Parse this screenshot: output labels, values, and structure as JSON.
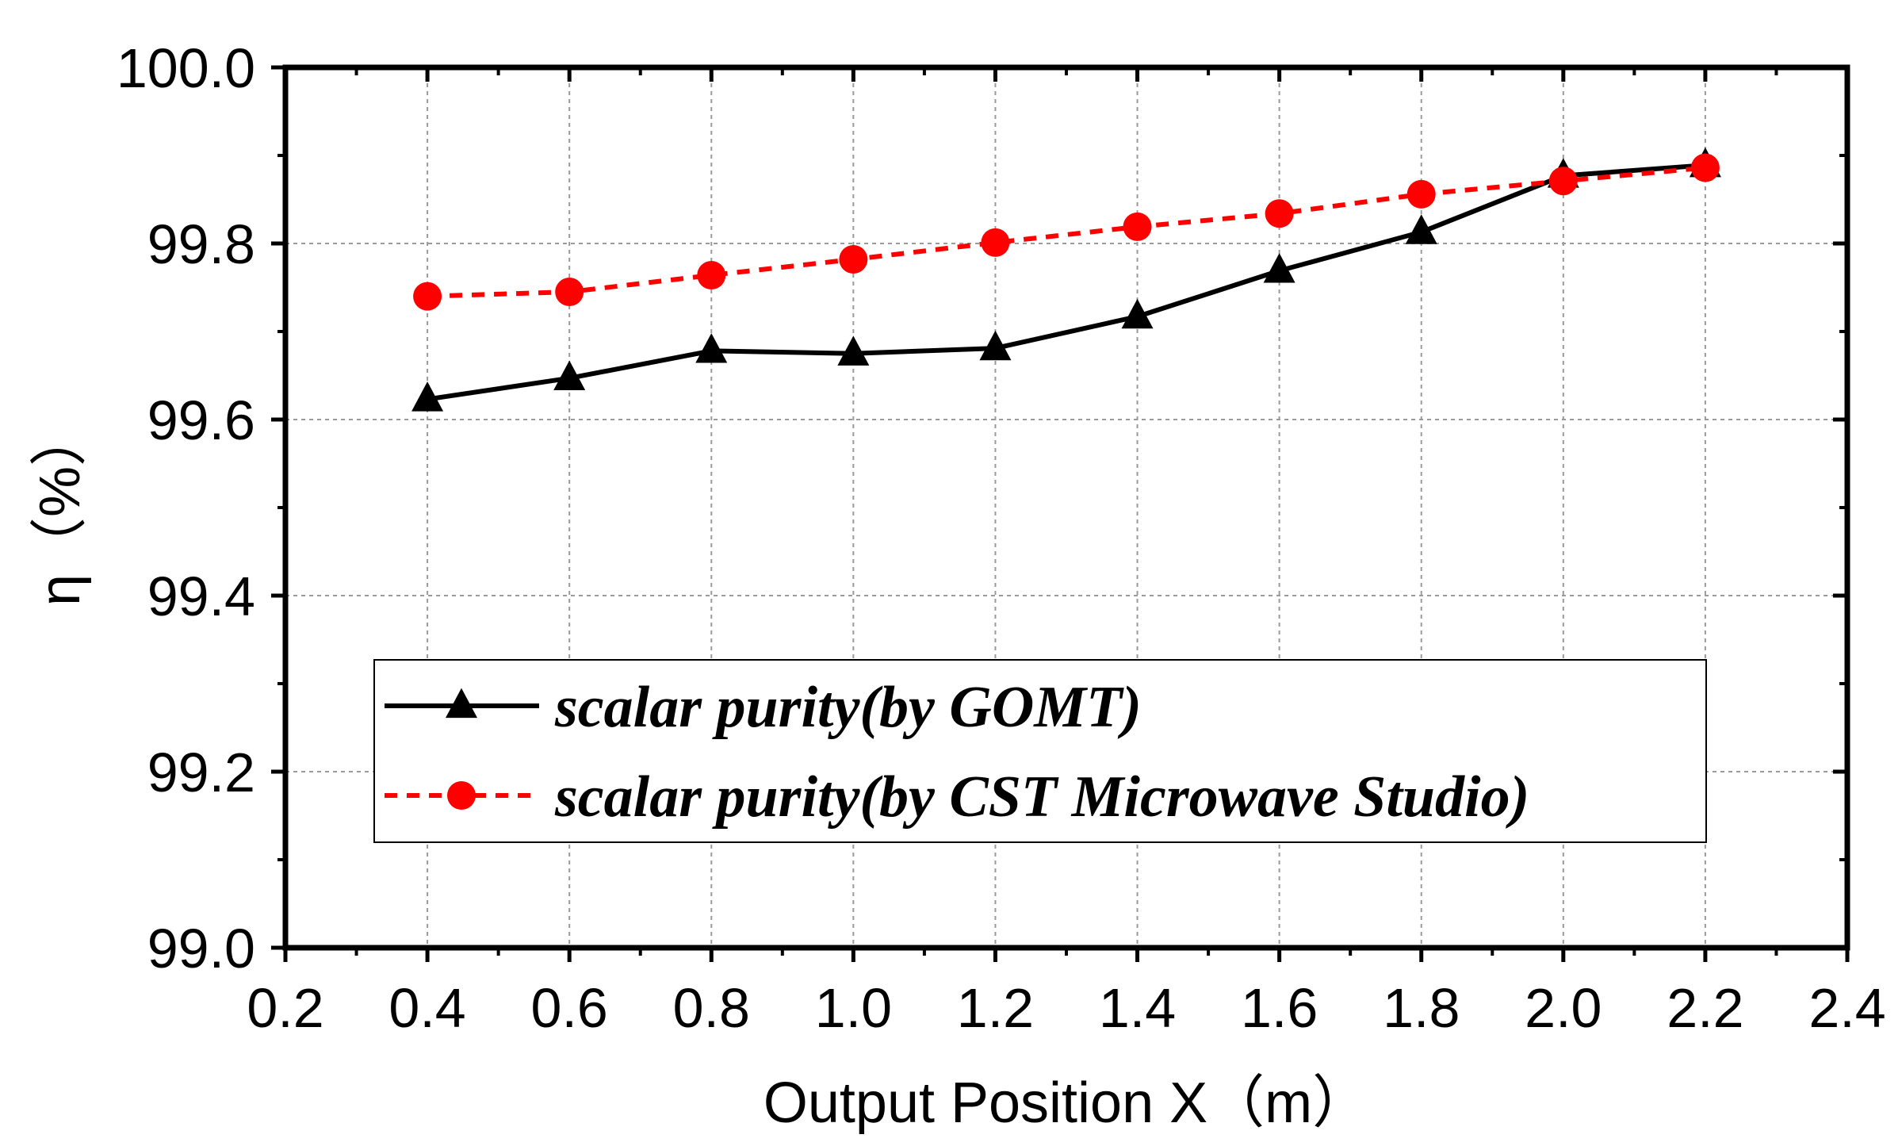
{
  "chart_data": {
    "type": "line",
    "title": "",
    "xlabel": "Output Position X（m）",
    "ylabel": "η（%）",
    "xlim": [
      0.2,
      2.4
    ],
    "ylim": [
      99.0,
      100.0
    ],
    "xticks": [
      "0.2",
      "0.4",
      "0.6",
      "0.8",
      "1.0",
      "1.2",
      "1.4",
      "1.6",
      "1.8",
      "2.0",
      "2.2",
      "2.4"
    ],
    "yticks": [
      "99.0",
      "99.2",
      "99.4",
      "99.6",
      "99.8",
      "100.0"
    ],
    "grid": true,
    "legend_position": "center-bottom",
    "series": [
      {
        "name": "scalar purity(by GOMT)",
        "color": "#000000",
        "marker": "triangle",
        "line_style": "solid",
        "x": [
          0.4,
          0.6,
          0.8,
          1.0,
          1.2,
          1.4,
          1.6,
          1.8,
          2.0,
          2.2
        ],
        "y": [
          99.623,
          99.647,
          99.678,
          99.675,
          99.681,
          99.717,
          99.769,
          99.813,
          99.877,
          99.889
        ]
      },
      {
        "name": "scalar purity(by CST Microwave Studio)",
        "color": "#ff0000",
        "marker": "circle",
        "line_style": "dashed",
        "x": [
          0.4,
          0.6,
          0.8,
          1.0,
          1.2,
          1.4,
          1.6,
          1.8,
          2.0,
          2.2
        ],
        "y": [
          99.74,
          99.745,
          99.764,
          99.782,
          99.801,
          99.819,
          99.834,
          99.856,
          99.871,
          99.886
        ]
      }
    ]
  }
}
